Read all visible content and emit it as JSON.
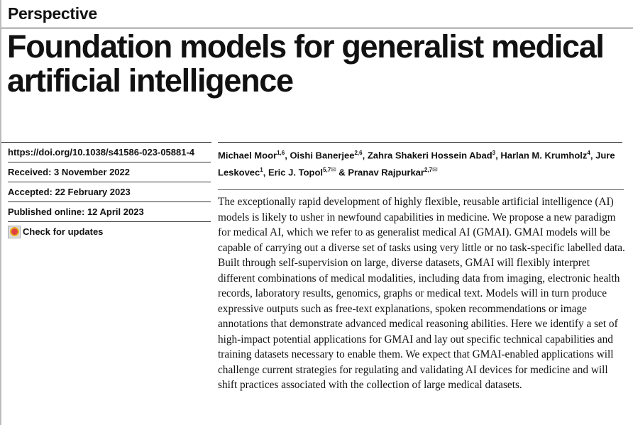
{
  "article_type": "Perspective",
  "title": "Foundation models for generalist medical artificial intelligence",
  "meta": {
    "doi": "https://doi.org/10.1038/s41586-023-05881-4",
    "received": "Received: 3 November 2022",
    "accepted": "Accepted: 22 February 2023",
    "published": "Published online: 12 April 2023",
    "check_updates": "Check for updates"
  },
  "authors": [
    {
      "name": "Michael Moor",
      "aff": "1,6",
      "sep": ", "
    },
    {
      "name": "Oishi Banerjee",
      "aff": "2,6",
      "sep": ", "
    },
    {
      "name": "Zahra Shakeri Hossein Abad",
      "aff": "3",
      "sep": ", "
    },
    {
      "name": "Harlan M. Krumholz",
      "aff": "4",
      "sep": ", "
    },
    {
      "name": "Jure Leskovec",
      "aff": "1",
      "sep": ", "
    },
    {
      "name": "Eric J. Topol",
      "aff": "5,7",
      "sep": " & "
    },
    {
      "name": "Pranav Rajpurkar",
      "aff": "2,7",
      "sep": ""
    }
  ],
  "abstract": "The exceptionally rapid development of highly flexible, reusable artificial intelligence (AI) models is likely to usher in newfound capabilities in medicine. We propose a new paradigm for medical AI, which we refer to as generalist medical AI (GMAI). GMAI models will be capable of carrying out a diverse set of tasks using very little or no task-specific labelled data. Built through self-supervision on large, diverse datasets, GMAI will flexibly interpret different combinations of medical modalities, including data from imaging, electronic health records, laboratory results, genomics, graphs or medical text. Models will in turn produce expressive outputs such as free-text explanations, spoken recommendations or image annotations that demonstrate advanced medical reasoning abilities. Here we identify a set of high-impact potential applications for GMAI and lay out specific technical capabilities and training datasets necessary to enable them. We expect that GMAI-enabled applications will challenge current strategies for regulating and validating AI devices for medicine and will shift practices associated with the collection of large medical datasets."
}
